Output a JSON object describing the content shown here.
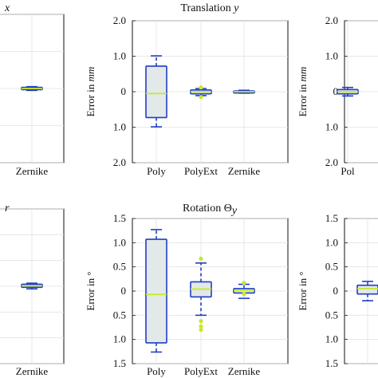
{
  "colors": {
    "box_edge": "#1f3fc4",
    "box_fill": "#e3e8e8",
    "median": "#c7e82a",
    "outlier": "#c7e82a",
    "frame": "#111111",
    "grid": "#e2e2e2"
  },
  "chart_data": [
    {
      "id": "left-top",
      "type": "box",
      "title": "x",
      "categories": [
        "Zernike"
      ],
      "ylabel": "",
      "yticks": [],
      "ylim": [
        -2,
        2
      ],
      "boxes": [
        {
          "category": "Zernike",
          "q1": -0.03,
          "median": 0.0,
          "q3": 0.03,
          "whisker_low": -0.05,
          "whisker_high": 0.05,
          "outliers": []
        }
      ]
    },
    {
      "id": "middle-top",
      "type": "box",
      "title": "Translation y",
      "title_main": "Translation",
      "title_var": "y",
      "categories": [
        "Poly",
        "PolyExt",
        "Zernike"
      ],
      "ylabel": "Error in",
      "ylabel_unit": "mm",
      "ytick_labels": [
        "2.0",
        "1.0",
        "0",
        "1.0",
        "2.0"
      ],
      "ylim": [
        -2,
        2
      ],
      "boxes": [
        {
          "category": "Poly",
          "q1": -0.73,
          "median": -0.05,
          "q3": 0.72,
          "whisker_low": -0.99,
          "whisker_high": 1.01,
          "outliers": []
        },
        {
          "category": "PolyExt",
          "q1": -0.06,
          "median": 0.0,
          "q3": 0.05,
          "whisker_low": -0.11,
          "whisker_high": 0.09,
          "outliers": [
            -0.15,
            0.12
          ]
        },
        {
          "category": "Zernike",
          "q1": -0.02,
          "median": 0.0,
          "q3": 0.02,
          "whisker_low": -0.04,
          "whisker_high": 0.04,
          "outliers": []
        }
      ]
    },
    {
      "id": "right-top",
      "type": "box",
      "title": "",
      "categories": [
        "Pol"
      ],
      "ylabel": "Error in",
      "ylabel_unit": "mm",
      "ytick_labels": [
        "2.0",
        "1.0",
        "0",
        "1.0",
        "2.0"
      ],
      "ylim": [
        -2,
        2
      ],
      "boxes": [
        {
          "category": "Pol",
          "q1": -0.06,
          "median": 0.0,
          "q3": 0.06,
          "whisker_low": -0.12,
          "whisker_high": 0.12,
          "outliers": []
        }
      ]
    },
    {
      "id": "left-bottom",
      "type": "box",
      "title": "r",
      "categories": [
        "Zernike"
      ],
      "ylabel": "",
      "yticks": [],
      "ylim": [
        -1.5,
        1.5
      ],
      "boxes": [
        {
          "category": "Zernike",
          "q1": -0.02,
          "median": 0.01,
          "q3": 0.04,
          "whisker_low": -0.05,
          "whisker_high": 0.06,
          "outliers": []
        }
      ]
    },
    {
      "id": "middle-bottom",
      "type": "box",
      "title": "Rotation Θy",
      "title_main": "Rotation Θ",
      "title_var": "y",
      "categories": [
        "Poly",
        "PolyExt",
        "Zernike"
      ],
      "ylabel": "Error in °",
      "ytick_labels": [
        "1.5",
        "1.0",
        "0.5",
        "0",
        "0.5",
        "1.0",
        "1.5"
      ],
      "ylim": [
        -1.5,
        1.5
      ],
      "boxes": [
        {
          "category": "Poly",
          "q1": -1.07,
          "median": -0.07,
          "q3": 1.07,
          "whisker_low": -1.26,
          "whisker_high": 1.27,
          "outliers": []
        },
        {
          "category": "PolyExt",
          "q1": -0.12,
          "median": 0.04,
          "q3": 0.19,
          "whisker_low": -0.5,
          "whisker_high": 0.58,
          "outliers": [
            -0.62,
            -0.73,
            -0.8,
            0.67
          ]
        },
        {
          "category": "Zernike",
          "q1": -0.04,
          "median": 0.01,
          "q3": 0.05,
          "whisker_low": -0.15,
          "whisker_high": 0.14,
          "outliers": [
            -0.06,
            0.17
          ]
        }
      ]
    },
    {
      "id": "right-bottom",
      "type": "box",
      "title": "",
      "categories": [],
      "ylabel": "Error in °",
      "ytick_labels": [
        "1.5",
        "1.0",
        "0.5",
        "0",
        "0.5",
        "1.0",
        "1.5"
      ],
      "ylim": [
        -1.5,
        1.5
      ],
      "boxes": [
        {
          "category": "",
          "q1": -0.06,
          "median": 0.05,
          "q3": 0.12,
          "whisker_low": -0.2,
          "whisker_high": 0.2,
          "outliers": []
        }
      ]
    }
  ]
}
